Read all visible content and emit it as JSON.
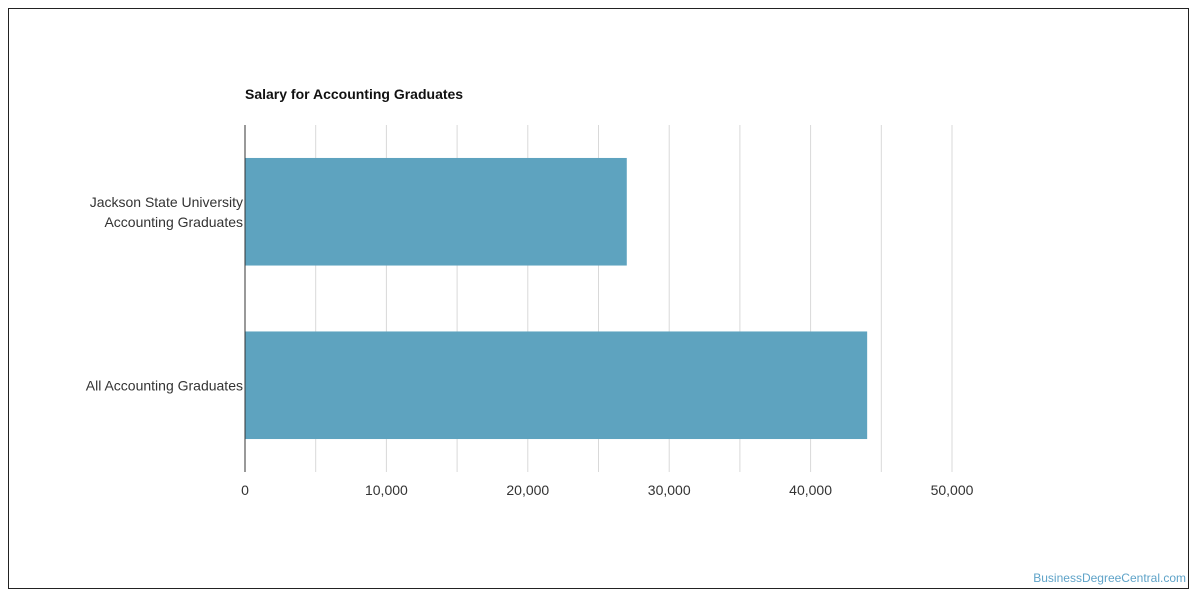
{
  "chart_data": {
    "type": "bar",
    "orientation": "horizontal",
    "title": "Salary for Accounting Graduates",
    "categories": [
      [
        "Jackson State University",
        "Accounting Graduates"
      ],
      [
        "All Accounting Graduates"
      ]
    ],
    "values": [
      27000,
      44000
    ],
    "xlim": [
      0,
      50000
    ],
    "ticks": [
      0,
      10000,
      20000,
      30000,
      40000,
      50000
    ],
    "tick_labels": [
      "0",
      "10,000",
      "20,000",
      "30,000",
      "40,000",
      "50,000"
    ],
    "xlabel": "",
    "ylabel": "",
    "grid": true,
    "legend": "none",
    "bar_color": "#5ea3bf",
    "grid_color": "#d9d9d9",
    "axis_color": "#333333"
  },
  "watermark": "BusinessDegreeCentral.com"
}
